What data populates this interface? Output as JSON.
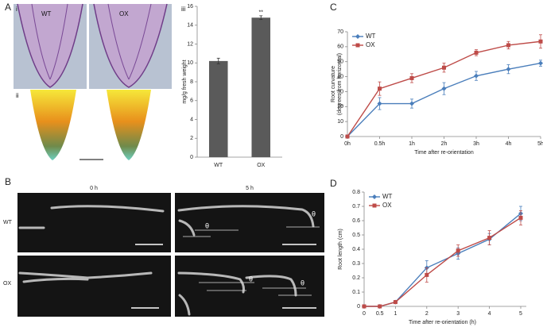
{
  "panel_labels": [
    "A",
    "B",
    "C",
    "D"
  ],
  "subpanel_labels": [
    "i",
    "ii",
    "iii"
  ],
  "panel_a": {
    "genotypes": [
      "WT",
      "OX"
    ]
  },
  "panel_b": {
    "times": [
      "0 h",
      "5 h"
    ],
    "genotypes": [
      "WT",
      "OX"
    ],
    "angle_labels": [
      "θ",
      "θ",
      "θ",
      "θ"
    ]
  },
  "chart_data": [
    {
      "type": "bar",
      "ylabel": "mg/g fresh weight",
      "categories": [
        "WT",
        "OX"
      ],
      "values": [
        10.2,
        14.8
      ],
      "errors": [
        0.3,
        0.2
      ],
      "color": "#5a5a5a",
      "annotation": "**",
      "ylim": [
        0,
        16
      ],
      "yticks": [
        0,
        2,
        4,
        6,
        8,
        10,
        12,
        14,
        16
      ]
    },
    {
      "type": "line",
      "ylabel": [
        "Root curvature",
        "(degrees from horizontal)"
      ],
      "xlabel": "Time after re-orientation",
      "categories": [
        "0h",
        "0.5h",
        "1h",
        "2h",
        "3h",
        "4h",
        "5h"
      ],
      "series": [
        {
          "name": "WT",
          "color": "#4a7ebb",
          "marker": "diamond",
          "values": [
            0,
            22,
            22,
            32,
            40.5,
            45,
            49
          ],
          "errors": [
            0,
            4,
            3,
            4,
            3,
            3,
            2
          ]
        },
        {
          "name": "OX",
          "color": "#be4b48",
          "marker": "square",
          "values": [
            0,
            32,
            39,
            46,
            56,
            61,
            63.5
          ],
          "errors": [
            0,
            4.5,
            3,
            3,
            2,
            2.5,
            4.5
          ]
        }
      ],
      "ylim": [
        0,
        70
      ],
      "yticks": [
        0,
        10,
        20,
        30,
        40,
        50,
        60,
        70
      ],
      "legend": "upper left"
    },
    {
      "type": "line",
      "ylabel": "Root length (cm)",
      "xlabel": "Time after re-orientation (h)",
      "x": [
        0,
        0.5,
        1,
        2,
        3,
        4,
        5
      ],
      "series": [
        {
          "name": "WT",
          "color": "#4a7ebb",
          "marker": "diamond",
          "values": [
            0,
            0,
            0.03,
            0.27,
            0.37,
            0.47,
            0.65
          ],
          "errors": [
            0,
            0,
            0.01,
            0.05,
            0.04,
            0.04,
            0.05
          ]
        },
        {
          "name": "OX",
          "color": "#be4b48",
          "marker": "square",
          "values": [
            0,
            0,
            0.03,
            0.22,
            0.39,
            0.48,
            0.62
          ],
          "errors": [
            0,
            0,
            0.01,
            0.05,
            0.04,
            0.05,
            0.05
          ]
        }
      ],
      "xlim": [
        0,
        5
      ],
      "xticks": [
        0,
        0.5,
        1,
        2,
        3,
        4,
        5
      ],
      "ylim": [
        0,
        0.8
      ],
      "yticks": [
        0,
        0.1,
        0.2,
        0.3,
        0.4,
        0.5,
        0.6,
        0.7,
        0.8
      ],
      "legend": "upper left"
    }
  ]
}
